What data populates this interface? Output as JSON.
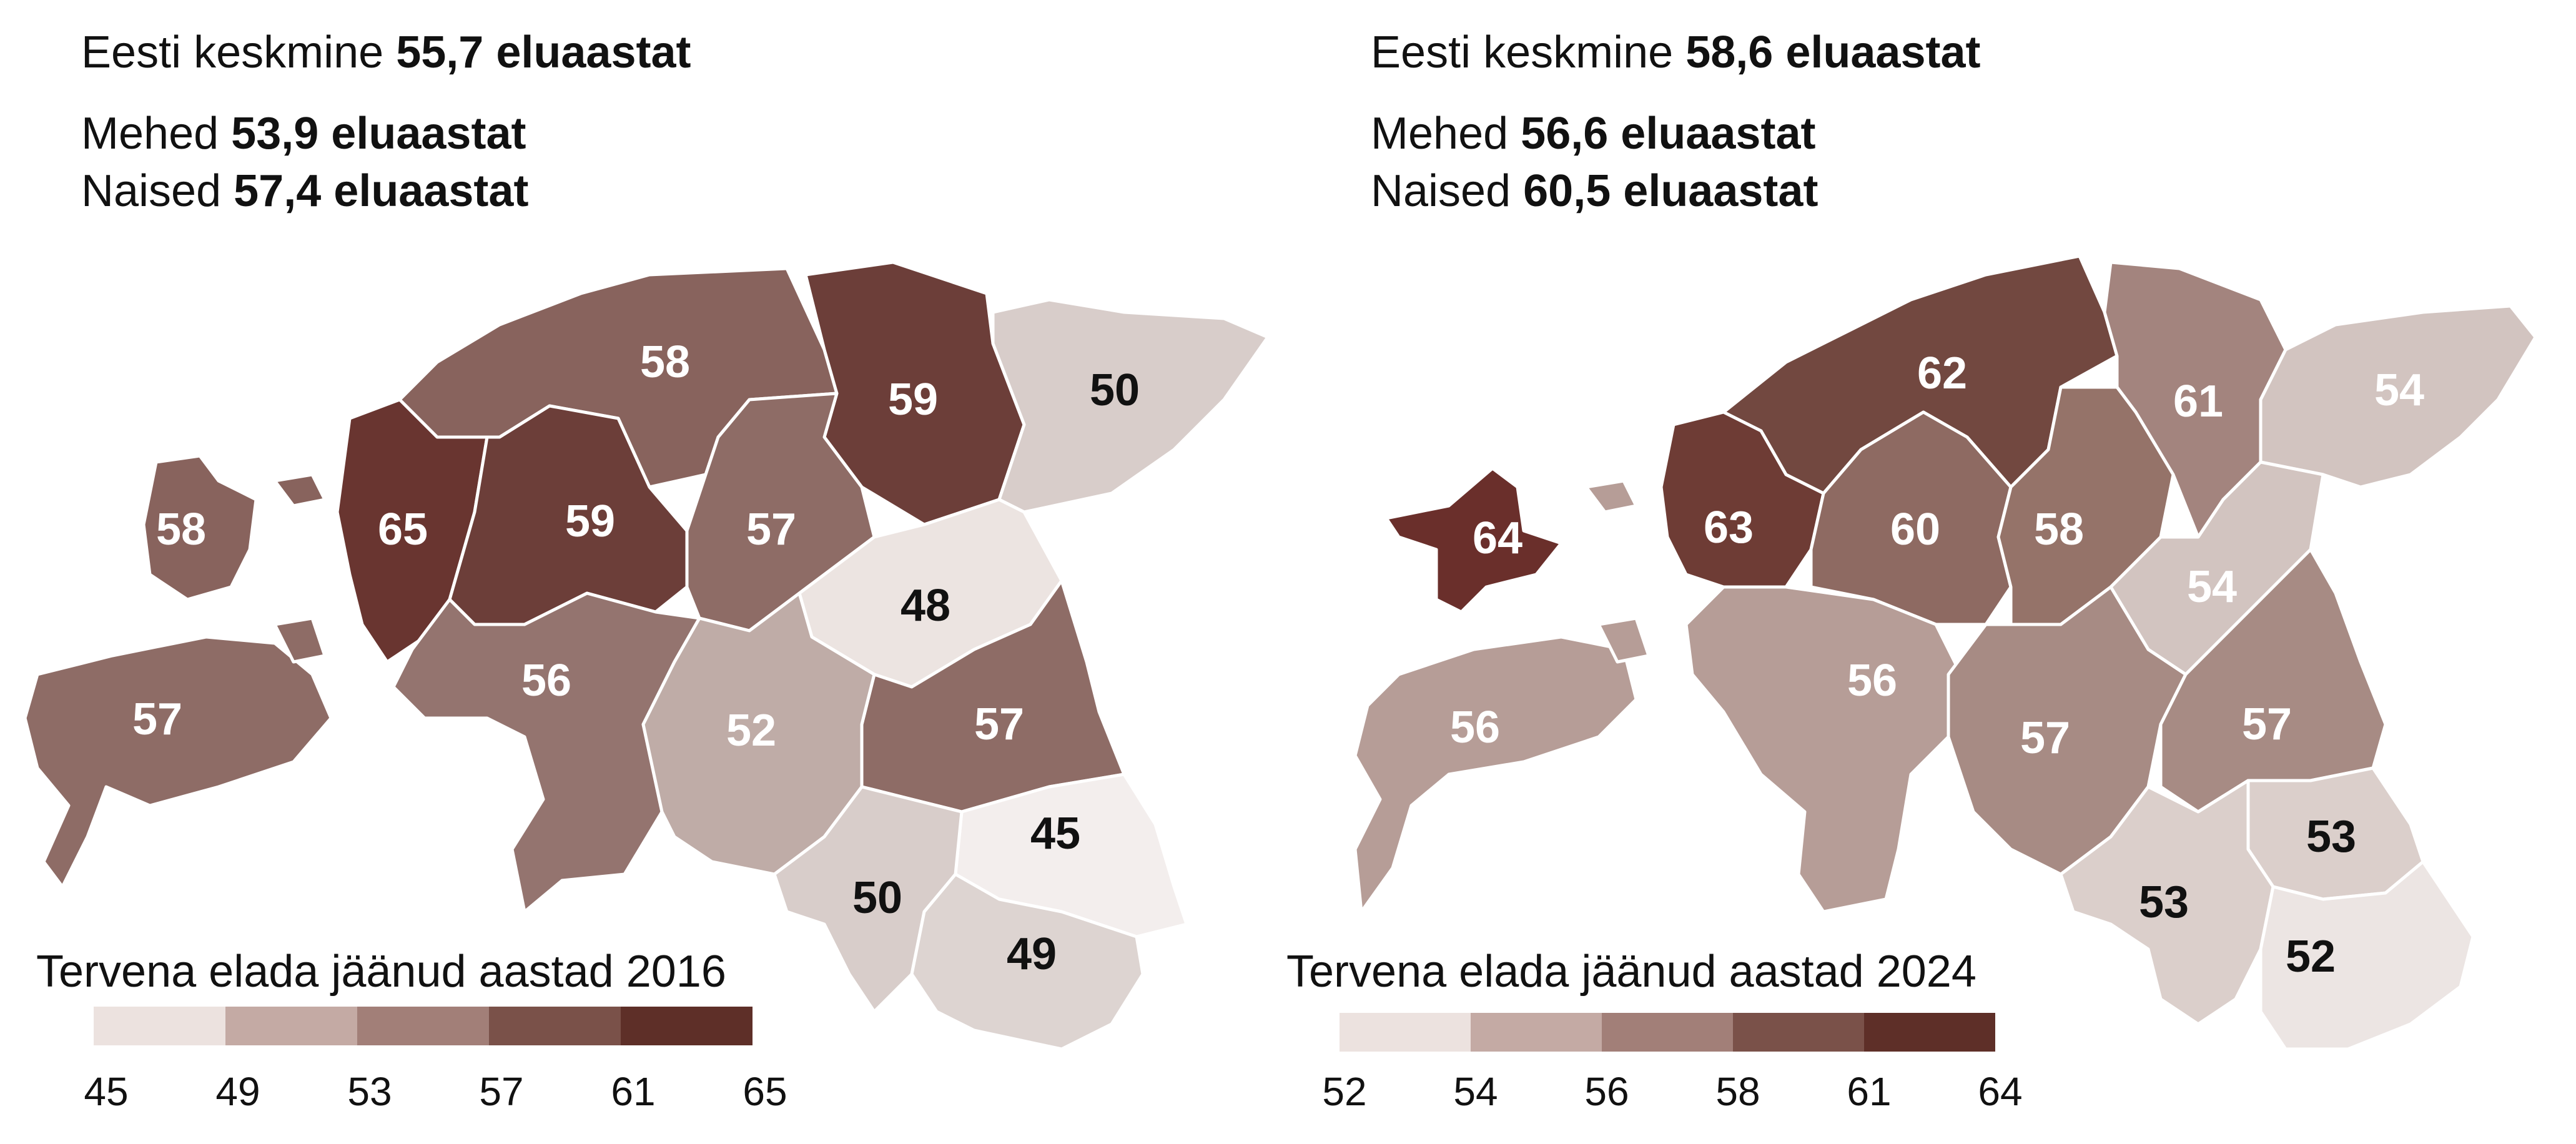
{
  "panels": [
    {
      "estonia_label": "Eesti keskmine",
      "estonia_value": "55,7 eluaastat",
      "men_label": "Mehed",
      "men_value": "53,9 eluaastat",
      "women_label": "Naised",
      "women_value": "57,4 eluaastat",
      "legend_title": "Tervena elada jäänud aastad 2016",
      "legend_ticks": [
        "45",
        "49",
        "53",
        "57",
        "61",
        "65"
      ],
      "legend_colors": [
        "#ece2df",
        "#c4aaa4",
        "#a27f78",
        "#7a5149",
        "#5e2f28"
      ],
      "regions": [
        {
          "label": "58",
          "fill": "#88635d",
          "dark_text": false
        },
        {
          "label": "59",
          "fill": "#6c3e39",
          "dark_text": false
        },
        {
          "label": "50",
          "fill": "#d8cdca",
          "dark_text": true
        },
        {
          "label": "58",
          "fill": "#88635d",
          "dark_text": false
        },
        {
          "label": "65",
          "fill": "#693530",
          "dark_text": false
        },
        {
          "label": "59",
          "fill": "#6c3e39",
          "dark_text": false
        },
        {
          "label": "57",
          "fill": "#8e6c66",
          "dark_text": false
        },
        {
          "label": "48",
          "fill": "#ece4e1",
          "dark_text": true
        },
        {
          "label": "57",
          "fill": "#8e6c66",
          "dark_text": false
        },
        {
          "label": "56",
          "fill": "#94746f",
          "dark_text": false
        },
        {
          "label": "52",
          "fill": "#bfaca7",
          "dark_text": false
        },
        {
          "label": "57",
          "fill": "#8e6c66",
          "dark_text": false
        },
        {
          "label": "45",
          "fill": "#f3eeed",
          "dark_text": true
        },
        {
          "label": "50",
          "fill": "#d8cdca",
          "dark_text": true
        },
        {
          "label": "49",
          "fill": "#ddd4d1",
          "dark_text": true
        }
      ]
    },
    {
      "estonia_label": "Eesti keskmine",
      "estonia_value": "58,6 eluaastat",
      "men_label": "Mehed",
      "men_value": "56,6 eluaastat",
      "women_label": "Naised",
      "women_value": "60,5 eluaastat",
      "legend_title": "Tervena elada jäänud aastad 2024",
      "legend_ticks": [
        "52",
        "54",
        "56",
        "58",
        "61",
        "64"
      ],
      "legend_colors": [
        "#ece2df",
        "#c4aaa4",
        "#a27f78",
        "#7a5149",
        "#5e2f28"
      ],
      "regions": [
        {
          "label": "62",
          "fill": "#724840",
          "dark_text": false
        },
        {
          "label": "61",
          "fill": "#a3847e",
          "dark_text": false
        },
        {
          "label": "54",
          "fill": "#d2c4c0",
          "dark_text": false
        },
        {
          "label": "64",
          "fill": "#6a2f2b",
          "dark_text": false
        },
        {
          "label": "63",
          "fill": "#6e3c35",
          "dark_text": false
        },
        {
          "label": "60",
          "fill": "#8e6a62",
          "dark_text": false
        },
        {
          "label": "58",
          "fill": "#957369",
          "dark_text": false
        },
        {
          "label": "54",
          "fill": "#d2c4c0",
          "dark_text": false
        },
        {
          "label": "56",
          "fill": "#b69d97",
          "dark_text": false
        },
        {
          "label": "56",
          "fill": "#b69d97",
          "dark_text": false
        },
        {
          "label": "57",
          "fill": "#a78b84",
          "dark_text": false
        },
        {
          "label": "57",
          "fill": "#a78b84",
          "dark_text": false
        },
        {
          "label": "53",
          "fill": "#dbcfcb",
          "dark_text": true
        },
        {
          "label": "53",
          "fill": "#dbcfcb",
          "dark_text": true
        },
        {
          "label": "52",
          "fill": "#ece5e3",
          "dark_text": true
        }
      ]
    }
  ]
}
